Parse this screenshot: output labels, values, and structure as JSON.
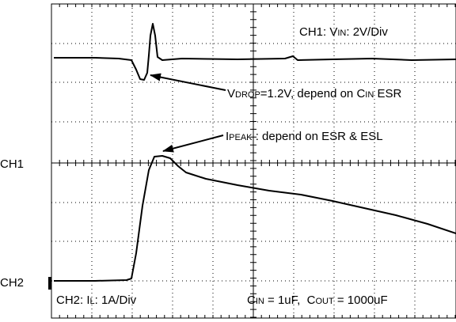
{
  "side_labels": [
    "CH1",
    "CH2"
  ],
  "annotations": {
    "ch1_scale": [
      "CH1: V",
      "IN",
      ": 2V/Div"
    ],
    "vdrop": [
      "V",
      "DROP",
      "=1.2V, depend on C",
      "IN",
      " ESR"
    ],
    "ipeak": [
      "I",
      "PEAK",
      " : depend on ESR & ESL"
    ],
    "ch2_scale": [
      "CH2: I",
      "L",
      ": 1A/Div"
    ],
    "components": [
      "C",
      "IN",
      " = 1uF,  C",
      "OUT",
      " = 1000uF"
    ]
  }
}
